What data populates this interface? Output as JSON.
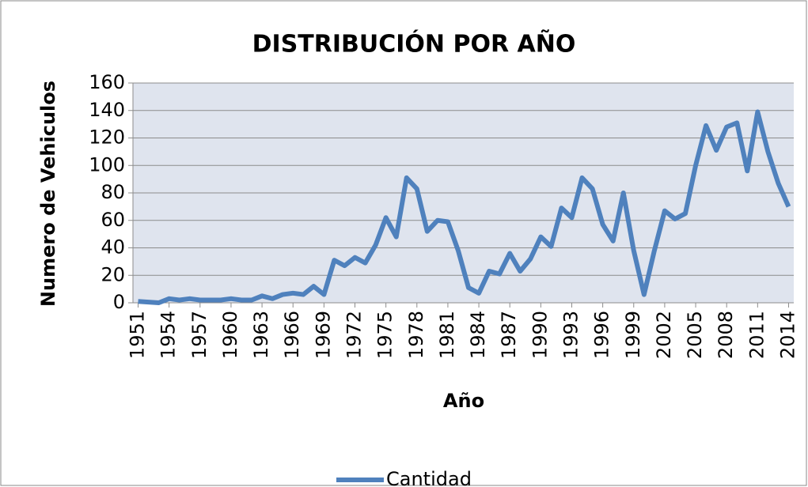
{
  "chart_data": {
    "type": "line",
    "title": "DISTRIBUCIÓN POR AÑO",
    "x_label": "Año",
    "y_label": "Numero de Vehiculos",
    "x": [
      1951,
      1952,
      1953,
      1954,
      1955,
      1956,
      1957,
      1958,
      1959,
      1960,
      1961,
      1962,
      1963,
      1964,
      1965,
      1966,
      1967,
      1968,
      1969,
      1970,
      1971,
      1972,
      1973,
      1974,
      1975,
      1976,
      1977,
      1978,
      1979,
      1980,
      1981,
      1982,
      1983,
      1984,
      1985,
      1986,
      1987,
      1988,
      1989,
      1990,
      1991,
      1992,
      1993,
      1994,
      1995,
      1996,
      1997,
      1998,
      1999,
      2000,
      2001,
      2002,
      2003,
      2004,
      2005,
      2006,
      2007,
      2008,
      2009,
      2010,
      2011,
      2012,
      2013,
      2014
    ],
    "series": [
      {
        "name": "Cantidad",
        "color": "#4f81bd",
        "values": [
          1,
          0.5,
          0,
          3,
          2,
          3,
          2,
          2,
          2,
          3,
          2,
          2,
          5,
          3,
          6,
          7,
          6,
          12,
          6,
          31,
          27,
          33,
          29,
          42,
          62,
          48,
          91,
          83,
          52,
          60,
          59,
          38,
          11,
          7,
          23,
          21,
          36,
          23,
          32,
          48,
          41,
          69,
          62,
          91,
          83,
          57,
          45,
          80,
          38,
          6,
          38,
          67,
          61,
          65,
          100,
          129,
          111,
          128,
          131,
          96,
          139,
          110,
          87,
          70
        ]
      }
    ],
    "xlim": [
      1950.5,
      2014.5
    ],
    "xticks": [
      1951,
      1954,
      1957,
      1960,
      1963,
      1966,
      1969,
      1972,
      1975,
      1978,
      1981,
      1984,
      1987,
      1990,
      1993,
      1996,
      1999,
      2002,
      2005,
      2008,
      2011,
      2014
    ],
    "ylim": [
      0,
      160
    ],
    "yticks": [
      0,
      20,
      40,
      60,
      80,
      100,
      120,
      140,
      160
    ],
    "grid": true,
    "legend": "bottom"
  }
}
